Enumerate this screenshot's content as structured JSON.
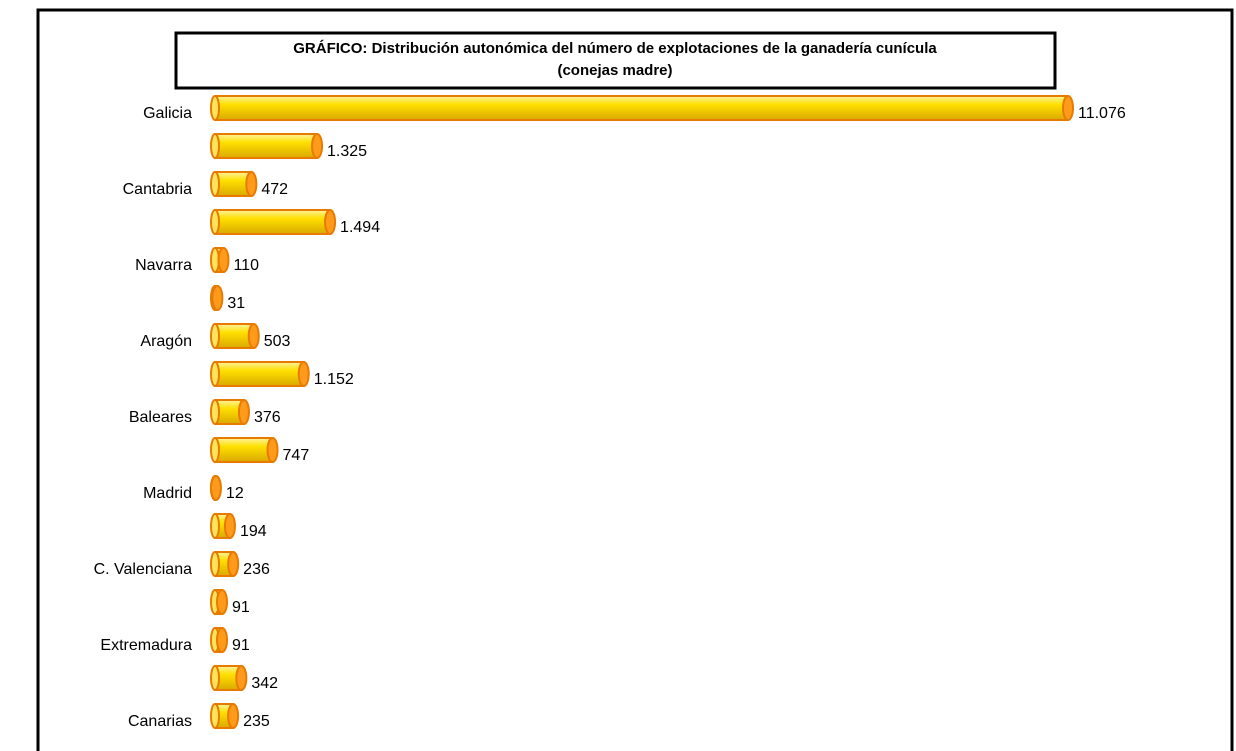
{
  "chart_data": {
    "type": "bar",
    "orientation": "horizontal",
    "title": "GRÁFICO: Distribución autonómica del número de explotaciones de la ganadería cunícula",
    "subtitle": "(conejas madre)",
    "categories": [
      "Galicia",
      null,
      "Cantabria",
      null,
      "Navarra",
      null,
      "Aragón",
      null,
      "Baleares",
      null,
      "Madrid",
      null,
      "C. Valenciana",
      null,
      "Extremadura",
      null,
      "Canarias"
    ],
    "values": [
      11076,
      1325,
      472,
      1494,
      110,
      31,
      503,
      1152,
      376,
      747,
      12,
      194,
      236,
      91,
      91,
      342,
      235
    ],
    "value_labels": [
      "11.076",
      "1.325",
      "472",
      "1.494",
      "110",
      "31",
      "503",
      "1.152",
      "376",
      "747",
      "12",
      "194",
      "236",
      "91",
      "91",
      "342",
      "235"
    ],
    "color": "#ffd400"
  }
}
